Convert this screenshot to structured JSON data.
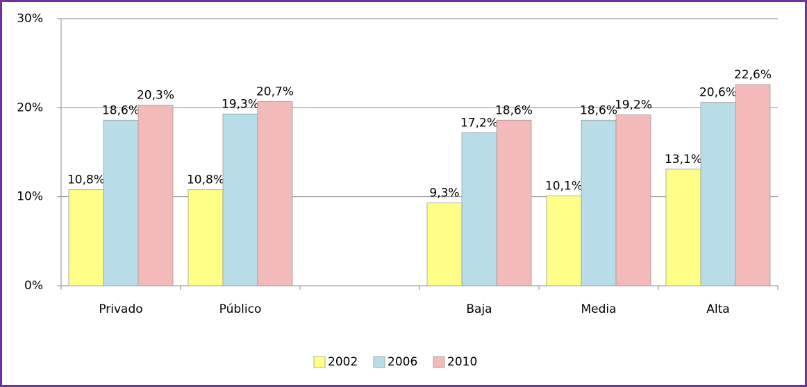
{
  "chart_data": {
    "type": "bar",
    "categories": [
      "Privado",
      "Público",
      null,
      "Baja",
      "Media",
      "Alta"
    ],
    "series": [
      {
        "name": "2002",
        "color": "#ffff88",
        "values": [
          10.8,
          10.8,
          null,
          9.3,
          10.1,
          13.1
        ],
        "value_labels": [
          "10,8%",
          "10,8%",
          null,
          "9,3%",
          "10,1%",
          "13,1%"
        ]
      },
      {
        "name": "2006",
        "color": "#b8dde8",
        "values": [
          18.6,
          19.3,
          null,
          17.2,
          18.6,
          20.6
        ],
        "value_labels": [
          "18,6%",
          "19,3%",
          null,
          "17,2%",
          "18,6%",
          "20,6%"
        ]
      },
      {
        "name": "2010",
        "color": "#f4baba",
        "values": [
          20.3,
          20.7,
          null,
          18.6,
          19.2,
          22.6
        ],
        "value_labels": [
          "20,3%",
          "20,7%",
          null,
          "18,6%",
          "19,2%",
          "22,6%"
        ]
      }
    ],
    "ylim": [
      0,
      30
    ],
    "yticks": [
      {
        "value": 0,
        "label": "0%"
      },
      {
        "value": 10,
        "label": "10%"
      },
      {
        "value": 20,
        "label": "20%"
      },
      {
        "value": 30,
        "label": "30%"
      }
    ],
    "grid": true,
    "legend": "bottom"
  }
}
